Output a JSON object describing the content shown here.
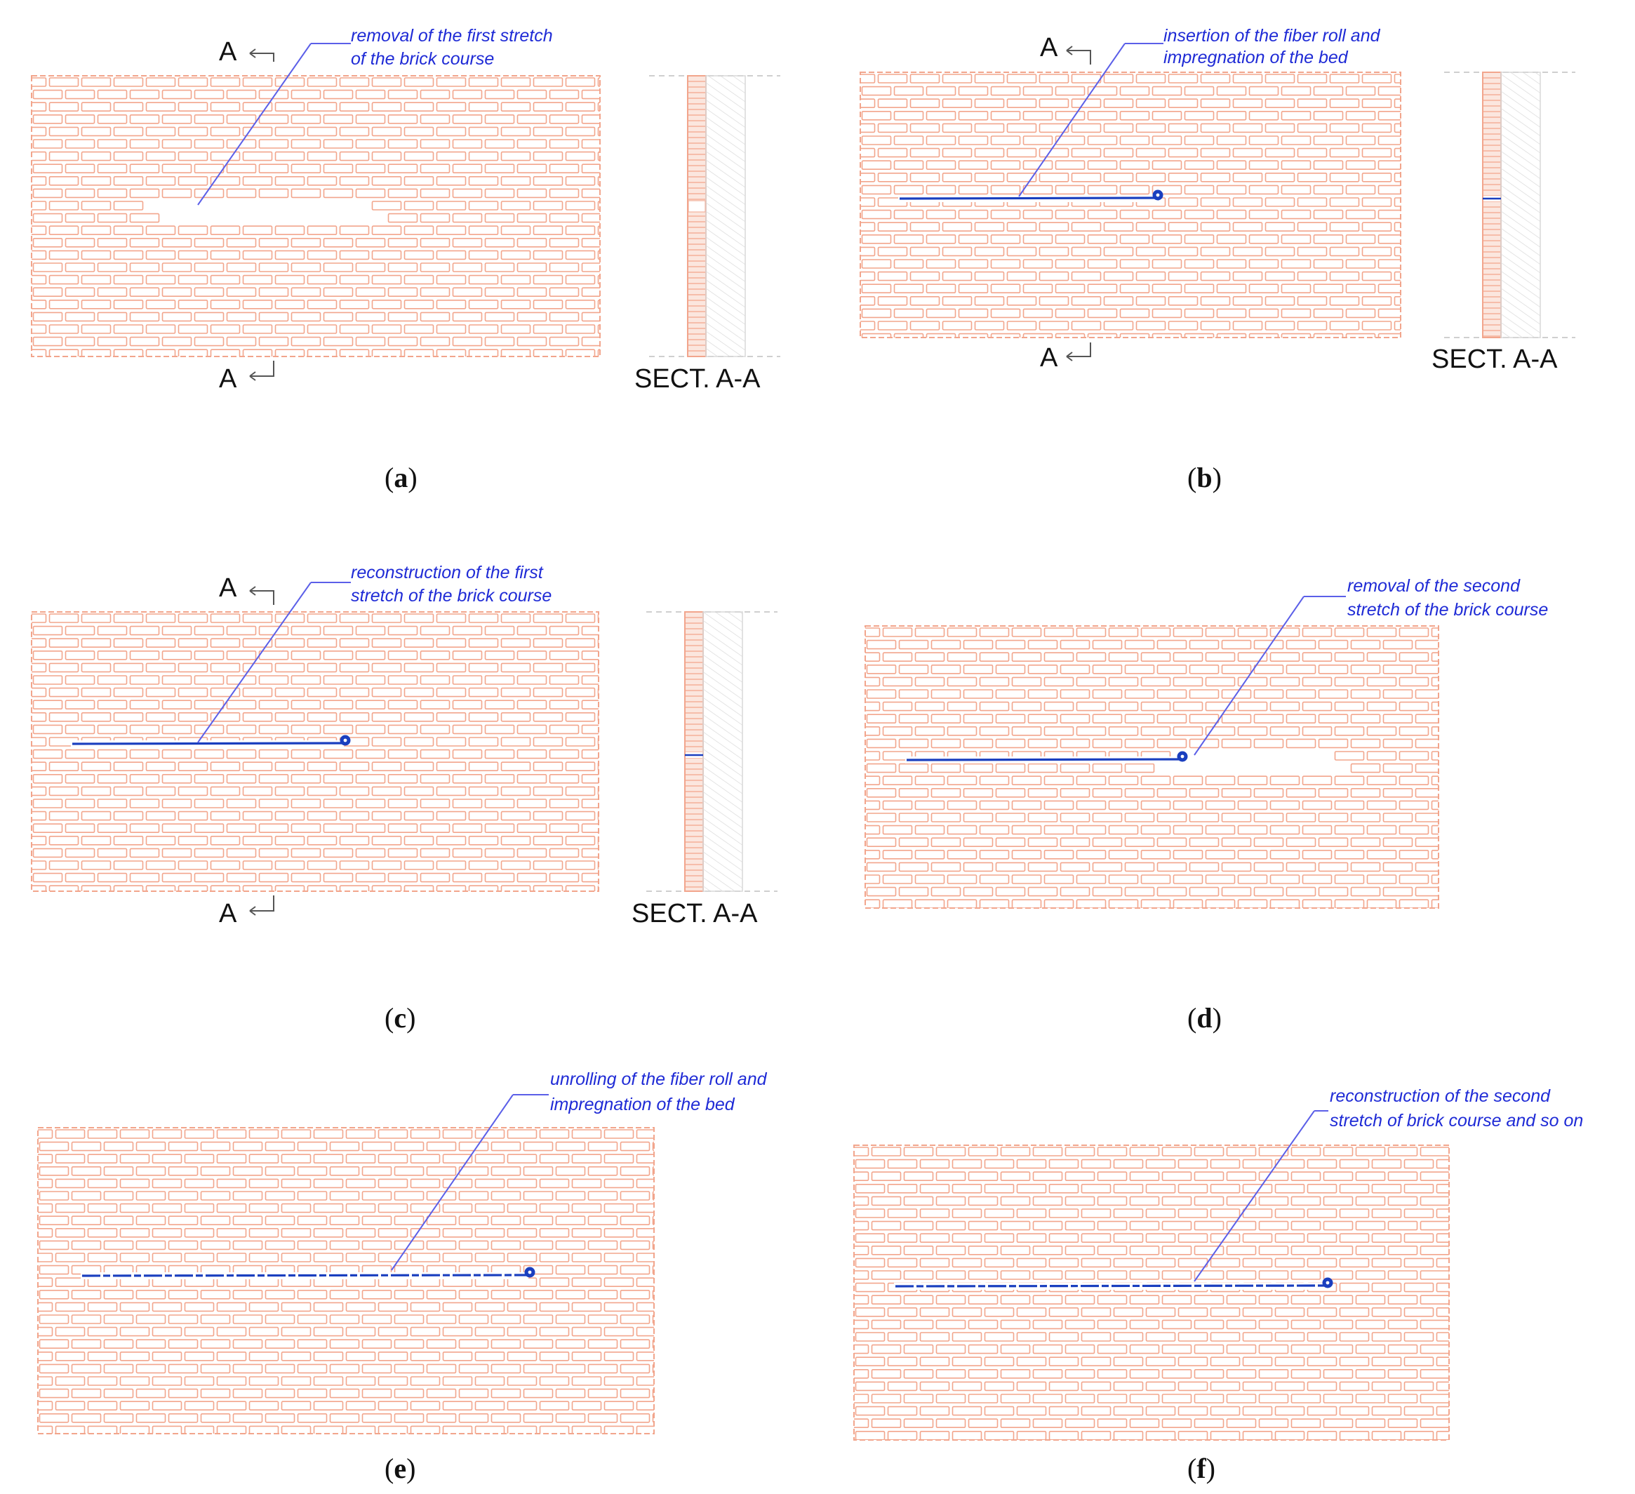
{
  "colors": {
    "brick": "#f2a58c",
    "annotation": "#1f2bd6",
    "fiber": "#1a3fbf",
    "hatch": "#d8d8d8",
    "text": "#111111"
  },
  "panels": [
    {
      "id": "a",
      "caption": "a",
      "annotation_lines": [
        "removal of the first stretch",
        "of the brick course"
      ],
      "section_marks": {
        "top": "A",
        "bottom": "A"
      },
      "section_label": "SECT. A-A"
    },
    {
      "id": "b",
      "caption": "b",
      "annotation_lines": [
        "insertion of the fiber roll and",
        "impregnation of the bed"
      ],
      "section_marks": {
        "top": "A",
        "bottom": "A"
      },
      "section_label": "SECT. A-A"
    },
    {
      "id": "c",
      "caption": "c",
      "annotation_lines": [
        "reconstruction of the first",
        "stretch of the brick course"
      ],
      "section_marks": {
        "top": "A",
        "bottom": "A"
      },
      "section_label": "SECT. A-A"
    },
    {
      "id": "d",
      "caption": "d",
      "annotation_lines": [
        "removal of the second",
        "stretch of the brick course"
      ]
    },
    {
      "id": "e",
      "caption": "e",
      "annotation_lines": [
        "unrolling of the fiber roll and",
        "impregnation of the bed"
      ]
    },
    {
      "id": "f",
      "caption": "f",
      "annotation_lines": [
        "reconstruction of the second",
        "stretch of brick course and so on"
      ]
    }
  ]
}
